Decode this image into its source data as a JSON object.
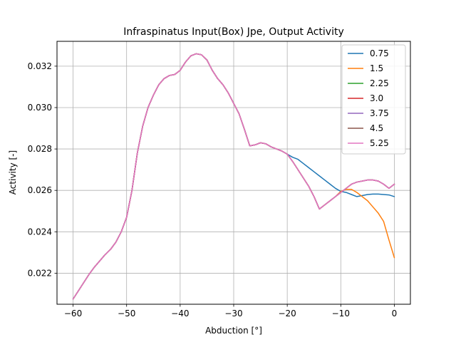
{
  "chart_data": {
    "type": "line",
    "title": "Infraspinatus Input(Box) Jpe, Output Activity",
    "xlabel": "Abduction [°]",
    "ylabel": "Activity [-]",
    "xlim": [
      -63,
      3
    ],
    "ylim": [
      0.0205,
      0.0332
    ],
    "xticks": [
      -60,
      -50,
      -40,
      -30,
      -20,
      -10,
      0
    ],
    "yticks": [
      0.022,
      0.024,
      0.026,
      0.028,
      0.03,
      0.032
    ],
    "grid": true,
    "legend_position": "top-right",
    "x": [
      -60,
      -59,
      -58,
      -57,
      -56,
      -55,
      -54,
      -53,
      -52,
      -51,
      -50,
      -49,
      -48,
      -47,
      -46,
      -45,
      -44,
      -43,
      -42,
      -41,
      -40,
      -39,
      -38,
      -37,
      -36,
      -35,
      -34,
      -33,
      -32,
      -31,
      -30,
      -29,
      -28,
      -27,
      -26,
      -25,
      -24,
      -23,
      -22,
      -21,
      -20,
      -19,
      -18,
      -17,
      -16,
      -15,
      -14,
      -13,
      -12,
      -11,
      -10,
      -9,
      -8,
      -7,
      -6,
      -5,
      -4,
      -3,
      -2,
      -1,
      0
    ],
    "series": [
      {
        "name": "0.75",
        "color": "#1f77b4",
        "values": [
          0.02075,
          0.02115,
          0.02155,
          0.02195,
          0.0223,
          0.0226,
          0.0229,
          0.02315,
          0.0235,
          0.024,
          0.0247,
          0.026,
          0.0278,
          0.0291,
          0.03,
          0.0306,
          0.0311,
          0.0314,
          0.03155,
          0.0316,
          0.0318,
          0.0322,
          0.0325,
          0.0326,
          0.03255,
          0.0323,
          0.0318,
          0.0314,
          0.0311,
          0.0307,
          0.0302,
          0.0297,
          0.02895,
          0.02815,
          0.0282,
          0.0283,
          0.02825,
          0.0281,
          0.028,
          0.0279,
          0.02775,
          0.0276,
          0.0275,
          0.0273,
          0.0271,
          0.0269,
          0.0267,
          0.0265,
          0.0263,
          0.0261,
          0.02595,
          0.0259,
          0.0258,
          0.0257,
          0.02575,
          0.0258,
          0.02582,
          0.02582,
          0.0258,
          0.02578,
          0.0257
        ]
      },
      {
        "name": "1.5",
        "color": "#ff7f0e",
        "values": [
          0.02075,
          0.02115,
          0.02155,
          0.02195,
          0.0223,
          0.0226,
          0.0229,
          0.02315,
          0.0235,
          0.024,
          0.0247,
          0.026,
          0.0278,
          0.0291,
          0.03,
          0.0306,
          0.0311,
          0.0314,
          0.03155,
          0.0316,
          0.0318,
          0.0322,
          0.0325,
          0.0326,
          0.03255,
          0.0323,
          0.0318,
          0.0314,
          0.0311,
          0.0307,
          0.0302,
          0.0297,
          0.02895,
          0.02815,
          0.0282,
          0.0283,
          0.02825,
          0.0281,
          0.028,
          0.0279,
          0.02775,
          0.0274,
          0.027,
          0.0266,
          0.0262,
          0.0257,
          0.0251,
          0.0253,
          0.0255,
          0.0257,
          0.02595,
          0.02605,
          0.02605,
          0.0259,
          0.0257,
          0.0255,
          0.0252,
          0.0249,
          0.0245,
          0.0236,
          0.02275
        ]
      },
      {
        "name": "2.25",
        "color": "#2ca02c",
        "values": [
          0.02075,
          0.02115,
          0.02155,
          0.02195,
          0.0223,
          0.0226,
          0.0229,
          0.02315,
          0.0235,
          0.024,
          0.0247,
          0.026,
          0.0278,
          0.0291,
          0.03,
          0.0306,
          0.0311,
          0.0314,
          0.03155,
          0.0316,
          0.0318,
          0.0322,
          0.0325,
          0.0326,
          0.03255,
          0.0323,
          0.0318,
          0.0314,
          0.0311,
          0.0307,
          0.0302,
          0.0297,
          0.02895,
          0.02815,
          0.0282,
          0.0283,
          0.02825,
          0.0281,
          0.028,
          0.0279,
          0.02775,
          0.0274,
          0.027,
          0.0266,
          0.0262,
          0.0257,
          0.0251,
          0.0253,
          0.0255,
          0.0257,
          0.0259,
          0.0261,
          0.0263,
          0.0264,
          0.02645,
          0.0265,
          0.0265,
          0.02645,
          0.0263,
          0.0261,
          0.0263
        ]
      },
      {
        "name": "3.0",
        "color": "#d62728",
        "values": [
          0.02075,
          0.02115,
          0.02155,
          0.02195,
          0.0223,
          0.0226,
          0.0229,
          0.02315,
          0.0235,
          0.024,
          0.0247,
          0.026,
          0.0278,
          0.0291,
          0.03,
          0.0306,
          0.0311,
          0.0314,
          0.03155,
          0.0316,
          0.0318,
          0.0322,
          0.0325,
          0.0326,
          0.03255,
          0.0323,
          0.0318,
          0.0314,
          0.0311,
          0.0307,
          0.0302,
          0.0297,
          0.02895,
          0.02815,
          0.0282,
          0.0283,
          0.02825,
          0.0281,
          0.028,
          0.0279,
          0.02775,
          0.0274,
          0.027,
          0.0266,
          0.0262,
          0.0257,
          0.0251,
          0.0253,
          0.0255,
          0.0257,
          0.0259,
          0.0261,
          0.0263,
          0.0264,
          0.02645,
          0.0265,
          0.0265,
          0.02645,
          0.0263,
          0.0261,
          0.0263
        ]
      },
      {
        "name": "3.75",
        "color": "#9467bd",
        "values": [
          0.02075,
          0.02115,
          0.02155,
          0.02195,
          0.0223,
          0.0226,
          0.0229,
          0.02315,
          0.0235,
          0.024,
          0.0247,
          0.026,
          0.0278,
          0.0291,
          0.03,
          0.0306,
          0.0311,
          0.0314,
          0.03155,
          0.0316,
          0.0318,
          0.0322,
          0.0325,
          0.0326,
          0.03255,
          0.0323,
          0.0318,
          0.0314,
          0.0311,
          0.0307,
          0.0302,
          0.0297,
          0.02895,
          0.02815,
          0.0282,
          0.0283,
          0.02825,
          0.0281,
          0.028,
          0.0279,
          0.02775,
          0.0274,
          0.027,
          0.0266,
          0.0262,
          0.0257,
          0.0251,
          0.0253,
          0.0255,
          0.0257,
          0.0259,
          0.0261,
          0.0263,
          0.0264,
          0.02645,
          0.0265,
          0.0265,
          0.02645,
          0.0263,
          0.0261,
          0.0263
        ]
      },
      {
        "name": "4.5",
        "color": "#8c564b",
        "values": [
          0.02075,
          0.02115,
          0.02155,
          0.02195,
          0.0223,
          0.0226,
          0.0229,
          0.02315,
          0.0235,
          0.024,
          0.0247,
          0.026,
          0.0278,
          0.0291,
          0.03,
          0.0306,
          0.0311,
          0.0314,
          0.03155,
          0.0316,
          0.0318,
          0.0322,
          0.0325,
          0.0326,
          0.03255,
          0.0323,
          0.0318,
          0.0314,
          0.0311,
          0.0307,
          0.0302,
          0.0297,
          0.02895,
          0.02815,
          0.0282,
          0.0283,
          0.02825,
          0.0281,
          0.028,
          0.0279,
          0.02775,
          0.0274,
          0.027,
          0.0266,
          0.0262,
          0.0257,
          0.0251,
          0.0253,
          0.0255,
          0.0257,
          0.0259,
          0.0261,
          0.0263,
          0.0264,
          0.02645,
          0.0265,
          0.0265,
          0.02645,
          0.0263,
          0.0261,
          0.0263
        ]
      },
      {
        "name": "5.25",
        "color": "#e377c2",
        "values": [
          0.02075,
          0.02115,
          0.02155,
          0.02195,
          0.0223,
          0.0226,
          0.0229,
          0.02315,
          0.0235,
          0.024,
          0.0247,
          0.026,
          0.0278,
          0.0291,
          0.03,
          0.0306,
          0.0311,
          0.0314,
          0.03155,
          0.0316,
          0.0318,
          0.0322,
          0.0325,
          0.0326,
          0.03255,
          0.0323,
          0.0318,
          0.0314,
          0.0311,
          0.0307,
          0.0302,
          0.0297,
          0.02895,
          0.02815,
          0.0282,
          0.0283,
          0.02825,
          0.0281,
          0.028,
          0.0279,
          0.02775,
          0.0274,
          0.027,
          0.0266,
          0.0262,
          0.0257,
          0.0251,
          0.0253,
          0.0255,
          0.0257,
          0.0259,
          0.0261,
          0.0263,
          0.0264,
          0.02645,
          0.0265,
          0.0265,
          0.02645,
          0.0263,
          0.0261,
          0.0263
        ]
      }
    ]
  }
}
